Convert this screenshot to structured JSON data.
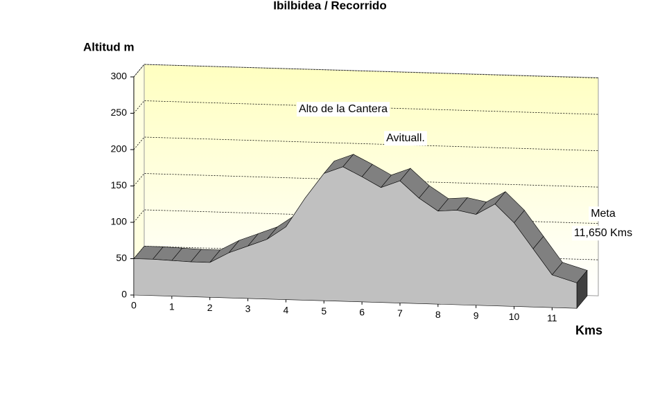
{
  "chart_data": {
    "type": "area3d",
    "title": "Ibilbidea / Recorrido",
    "y_label": "Altitud m",
    "x_label": "Kms",
    "x": [
      0,
      0.5,
      1,
      1.5,
      2,
      2.5,
      3,
      3.5,
      4,
      4.5,
      5,
      5.5,
      6,
      6.5,
      7,
      7.5,
      8,
      8.5,
      9,
      9.5,
      10,
      10.5,
      11,
      11.65
    ],
    "values": [
      50,
      50,
      49,
      48,
      48,
      62,
      72,
      82,
      100,
      140,
      175,
      185,
      172,
      158,
      168,
      145,
      128,
      130,
      125,
      140,
      115,
      80,
      45,
      35
    ],
    "color": "#c0c0c0",
    "xlim": [
      0,
      11.65
    ],
    "xticks": [
      0,
      1,
      2,
      3,
      4,
      5,
      6,
      7,
      8,
      9,
      10,
      11
    ],
    "ylim": [
      0,
      300
    ],
    "yticks": [
      0,
      50,
      100,
      150,
      200,
      250,
      300
    ],
    "grid": true,
    "annotations": [
      "Alto de la Cantera",
      "Avituall.",
      "Meta",
      "11,650 Kms"
    ]
  }
}
